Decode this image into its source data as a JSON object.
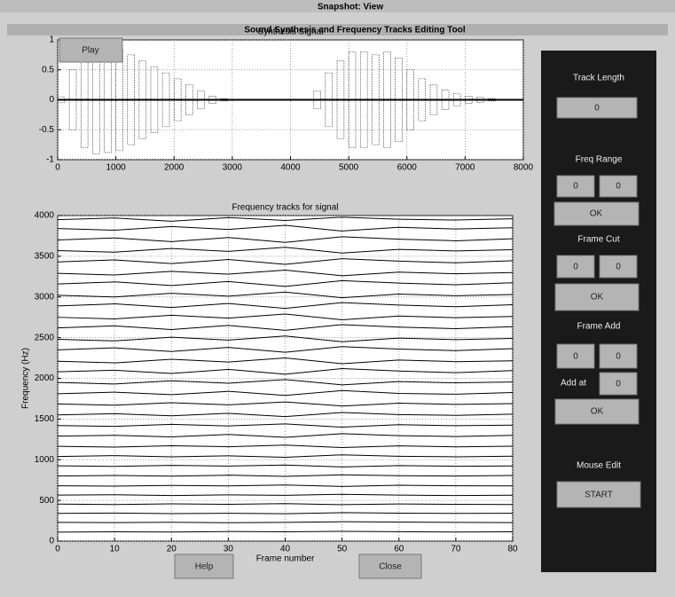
{
  "window": {
    "title": "Snapshot: View",
    "subtitle": "Sound Synthesis and Frequency Tracks Editing Tool"
  },
  "buttons": {
    "play": "Play",
    "help": "Help",
    "close": "Close"
  },
  "panel": {
    "track_length": {
      "label": "Track Length",
      "value": "0"
    },
    "freq_range": {
      "label": "Freq Range",
      "low": "0",
      "high": "0",
      "ok": "OK"
    },
    "frame_cut": {
      "label": "Frame Cut",
      "start": "0",
      "end": "0",
      "ok": "OK"
    },
    "frame_add": {
      "label": "Frame Add",
      "start": "0",
      "end": "0",
      "add_at_label": "Add at",
      "add_at": "0",
      "ok": "OK"
    },
    "mouse_edit": {
      "label": "Mouse Edit",
      "start": "START"
    }
  },
  "chart_data": [
    {
      "type": "waveform",
      "title": "Synthesis Signal",
      "x": [
        0,
        200,
        400,
        600,
        800,
        1000,
        1200,
        1400,
        1600,
        1800,
        2000,
        2200,
        2400,
        2600,
        2800,
        3000,
        3200,
        3400,
        3600,
        3800,
        4000,
        4200,
        4400,
        4600,
        4800,
        5000,
        5200,
        5400,
        5600,
        5800,
        6000,
        6200,
        6400,
        6600,
        6800,
        7000,
        7200,
        7400,
        7600
      ],
      "values": [
        0.05,
        0.5,
        0.8,
        0.9,
        0.88,
        0.85,
        0.75,
        0.65,
        0.55,
        0.45,
        0.35,
        0.25,
        0.15,
        0.06,
        0.02,
        0,
        0,
        0,
        0,
        0,
        0,
        0,
        0.15,
        0.45,
        0.65,
        0.8,
        0.8,
        0.75,
        0.8,
        0.7,
        0.5,
        0.35,
        0.25,
        0.16,
        0.1,
        0.06,
        0.04,
        0.02,
        0.01
      ],
      "color": "#000000",
      "xlim": [
        0,
        8000
      ],
      "xticks": [
        0,
        1000,
        2000,
        3000,
        4000,
        5000,
        6000,
        7000,
        8000
      ],
      "ylim": [
        -1,
        1
      ],
      "yticks": [
        -1,
        -0.5,
        0,
        0.5,
        1
      ],
      "grid": true
    },
    {
      "type": "line",
      "title": "Frequency tracks for signal",
      "xlabel": "Frame number",
      "ylabel": "Frequency (Hz)",
      "x": [
        0,
        10,
        20,
        30,
        40,
        50,
        60,
        70,
        80
      ],
      "color": "#000000",
      "series": [
        {
          "values": [
            110,
            115,
            112,
            118,
            114,
            120,
            116,
            112,
            115
          ]
        },
        {
          "values": [
            230,
            228,
            232,
            226,
            230,
            238,
            234,
            230,
            228
          ]
        },
        {
          "values": [
            340,
            345,
            338,
            342,
            336,
            350,
            344,
            340,
            342
          ]
        },
        {
          "values": [
            455,
            450,
            458,
            452,
            460,
            448,
            456,
            452,
            450
          ]
        },
        {
          "values": [
            565,
            570,
            560,
            568,
            562,
            575,
            566,
            560,
            564
          ]
        },
        {
          "values": [
            680,
            676,
            684,
            678,
            690,
            672,
            686,
            680,
            678
          ]
        },
        {
          "values": [
            800,
            806,
            798,
            810,
            795,
            815,
            804,
            800,
            806
          ]
        },
        {
          "values": [
            925,
            918,
            930,
            922,
            935,
            912,
            928,
            920,
            924
          ]
        },
        {
          "values": [
            1040,
            1050,
            1035,
            1048,
            1030,
            1060,
            1042,
            1036,
            1044
          ]
        },
        {
          "values": [
            1165,
            1155,
            1172,
            1160,
            1180,
            1150,
            1170,
            1158,
            1166
          ]
        },
        {
          "values": [
            1290,
            1300,
            1280,
            1310,
            1275,
            1320,
            1295,
            1285,
            1300
          ]
        },
        {
          "values": [
            1420,
            1410,
            1435,
            1415,
            1440,
            1400,
            1430,
            1418,
            1425
          ]
        },
        {
          "values": [
            1550,
            1565,
            1540,
            1570,
            1530,
            1580,
            1555,
            1545,
            1560
          ]
        },
        {
          "values": [
            1685,
            1670,
            1700,
            1675,
            1710,
            1660,
            1695,
            1680,
            1690
          ]
        },
        {
          "values": [
            1810,
            1830,
            1800,
            1840,
            1790,
            1850,
            1815,
            1805,
            1825
          ]
        },
        {
          "values": [
            1950,
            1930,
            1970,
            1940,
            1985,
            1920,
            1960,
            1945,
            1955
          ]
        },
        {
          "values": [
            2080,
            2100,
            2060,
            2110,
            2050,
            2120,
            2090,
            2070,
            2095
          ]
        },
        {
          "values": [
            2210,
            2190,
            2235,
            2200,
            2250,
            2180,
            2225,
            2205,
            2215
          ]
        },
        {
          "values": [
            2350,
            2375,
            2330,
            2380,
            2320,
            2390,
            2360,
            2340,
            2365
          ]
        },
        {
          "values": [
            2480,
            2460,
            2505,
            2470,
            2520,
            2450,
            2495,
            2475,
            2490
          ]
        },
        {
          "values": [
            2620,
            2645,
            2600,
            2650,
            2590,
            2660,
            2630,
            2610,
            2635
          ]
        },
        {
          "values": [
            2750,
            2730,
            2775,
            2740,
            2790,
            2720,
            2765,
            2745,
            2760
          ]
        },
        {
          "values": [
            2890,
            2915,
            2870,
            2920,
            2860,
            2930,
            2900,
            2880,
            2905
          ]
        },
        {
          "values": [
            3020,
            3000,
            3045,
            3010,
            3060,
            2990,
            3035,
            3015,
            3030
          ]
        },
        {
          "values": [
            3160,
            3185,
            3140,
            3190,
            3130,
            3200,
            3170,
            3150,
            3175
          ]
        },
        {
          "values": [
            3290,
            3270,
            3315,
            3280,
            3330,
            3260,
            3305,
            3285,
            3300
          ]
        },
        {
          "values": [
            3430,
            3455,
            3410,
            3460,
            3400,
            3470,
            3440,
            3420,
            3445
          ]
        },
        {
          "values": [
            3570,
            3550,
            3595,
            3560,
            3610,
            3540,
            3585,
            3565,
            3580
          ]
        },
        {
          "values": [
            3700,
            3725,
            3680,
            3730,
            3670,
            3740,
            3710,
            3690,
            3715
          ]
        },
        {
          "values": [
            3840,
            3820,
            3865,
            3830,
            3880,
            3810,
            3855,
            3835,
            3850
          ]
        },
        {
          "values": [
            3950,
            3970,
            3930,
            3975,
            3940,
            3980,
            3955,
            3945,
            3960
          ]
        }
      ],
      "xlim": [
        0,
        80
      ],
      "xticks": [
        0,
        10,
        20,
        30,
        40,
        50,
        60,
        70,
        80
      ],
      "ylim": [
        0,
        4000
      ],
      "yticks": [
        0,
        500,
        1000,
        1500,
        2000,
        2500,
        3000,
        3500,
        4000
      ],
      "grid": true
    }
  ]
}
